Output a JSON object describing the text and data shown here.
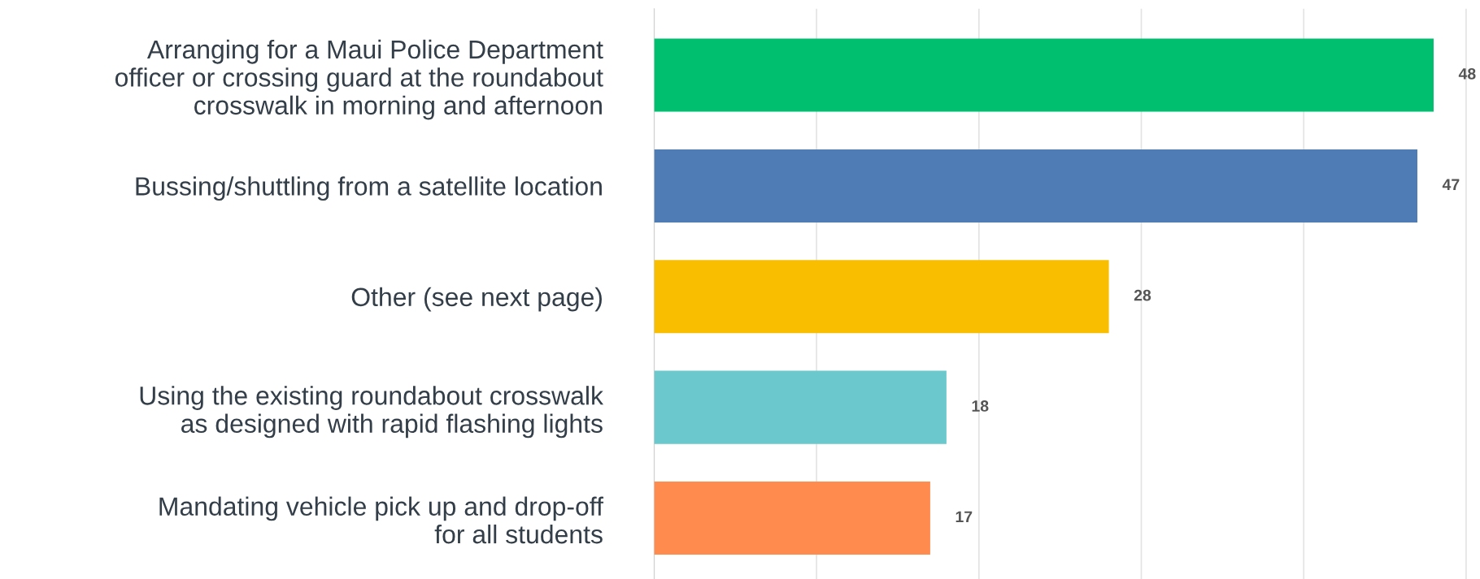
{
  "chart_data": {
    "type": "bar",
    "orientation": "horizontal",
    "categories": [
      "Arranging for a Maui Police Department\nofficer or crossing guard at the roundabout\ncrosswalk in morning and afternoon",
      "Bussing/shuttling from a satellite location",
      "Other (see next page)",
      "Using the existing roundabout crosswalk\nas designed with rapid flashing lights",
      "Mandating vehicle pick up and drop-off\nfor all students"
    ],
    "values": [
      48,
      47,
      28,
      18,
      17
    ],
    "colors": [
      "#00bf6f",
      "#507cb6",
      "#f9be00",
      "#6bc8cd",
      "#ff8b4f"
    ],
    "data_labels": true,
    "xticks": [
      {
        "value": 0,
        "label": null
      },
      {
        "value": 10,
        "label": null
      },
      {
        "value": 20,
        "label": null
      },
      {
        "value": 30,
        "label": null
      },
      {
        "value": 40,
        "label": null
      },
      {
        "value": 50,
        "label": null
      }
    ],
    "tick_labels": "y",
    "grid": "x"
  }
}
